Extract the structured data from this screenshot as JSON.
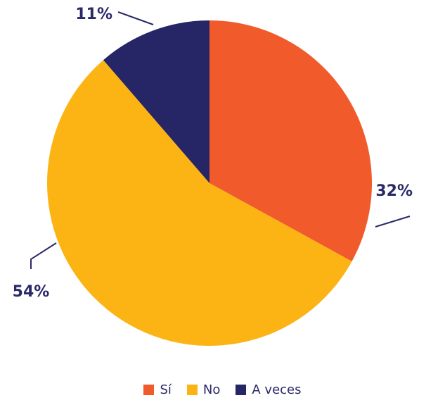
{
  "chart_data": {
    "type": "pie",
    "title": "",
    "start_angle_deg": 0,
    "direction": "clockwise",
    "slices": [
      {
        "name": "Sí",
        "value": 32,
        "label": "32%",
        "color": "#f15a2b"
      },
      {
        "name": "No",
        "value": 54,
        "label": "54%",
        "color": "#fbb414"
      },
      {
        "name": "A veces",
        "value": 11,
        "label": "11%",
        "color": "#262565"
      }
    ],
    "legend": {
      "position": "bottom",
      "items": [
        "Sí",
        "No",
        "A veces"
      ]
    },
    "label_color": "#2b2968",
    "leader_line_color": "#2b2968"
  }
}
